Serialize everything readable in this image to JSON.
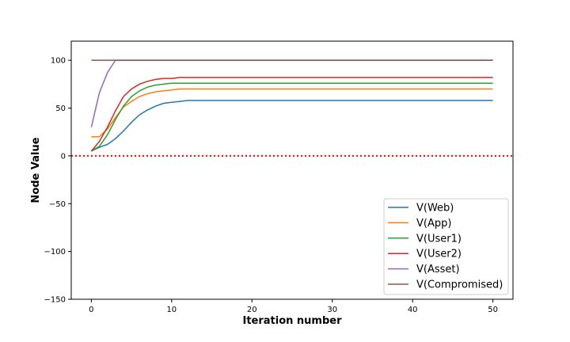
{
  "chart_data": {
    "type": "line",
    "title": "",
    "xlabel": "Iteration number",
    "ylabel": "Node Value",
    "xlim": [
      -2.5,
      52.5
    ],
    "ylim": [
      -150,
      120
    ],
    "xticks": [
      0,
      10,
      20,
      30,
      40,
      50
    ],
    "yticks": [
      -150,
      -100,
      -50,
      0,
      50,
      100
    ],
    "grid": false,
    "legend_position": "lower-right",
    "reference_line": {
      "y": 0,
      "color": "#ff0000",
      "style": "dotted"
    },
    "x": [
      0,
      1,
      2,
      3,
      4,
      5,
      6,
      7,
      8,
      9,
      10,
      11,
      12,
      13,
      14,
      15,
      16,
      17,
      18,
      19,
      20,
      21,
      22,
      23,
      24,
      25,
      26,
      27,
      28,
      29,
      30,
      31,
      32,
      33,
      34,
      35,
      36,
      37,
      38,
      39,
      40,
      41,
      42,
      43,
      44,
      45,
      46,
      47,
      48,
      49,
      50
    ],
    "series": [
      {
        "name": "V(Web)",
        "color": "#1f77b4",
        "values": [
          5,
          9,
          12,
          18,
          26,
          35,
          43,
          48,
          52,
          55,
          56,
          57,
          58,
          58,
          58,
          58,
          58,
          58,
          58,
          58,
          58,
          58,
          58,
          58,
          58,
          58,
          58,
          58,
          58,
          58,
          58,
          58,
          58,
          58,
          58,
          58,
          58,
          58,
          58,
          58,
          58,
          58,
          58,
          58,
          58,
          58,
          58,
          58,
          58,
          58,
          58
        ]
      },
      {
        "name": "V(App)",
        "color": "#ff7f0e",
        "values": [
          20,
          20,
          28,
          40,
          51,
          57,
          62,
          65,
          67,
          68,
          69,
          70,
          70,
          70,
          70,
          70,
          70,
          70,
          70,
          70,
          70,
          70,
          70,
          70,
          70,
          70,
          70,
          70,
          70,
          70,
          70,
          70,
          70,
          70,
          70,
          70,
          70,
          70,
          70,
          70,
          70,
          70,
          70,
          70,
          70,
          70,
          70,
          70,
          70,
          70,
          70
        ]
      },
      {
        "name": "V(User1)",
        "color": "#2ca02c",
        "values": [
          5,
          10,
          22,
          38,
          52,
          62,
          68,
          72,
          74,
          75,
          76,
          76,
          76,
          76,
          76,
          76,
          76,
          76,
          76,
          76,
          76,
          76,
          76,
          76,
          76,
          76,
          76,
          76,
          76,
          76,
          76,
          76,
          76,
          76,
          76,
          76,
          76,
          76,
          76,
          76,
          76,
          76,
          76,
          76,
          76,
          76,
          76,
          76,
          76,
          76,
          76
        ]
      },
      {
        "name": "V(User2)",
        "color": "#d62728",
        "values": [
          5,
          15,
          30,
          47,
          62,
          70,
          75,
          78,
          80,
          81,
          81,
          82,
          82,
          82,
          82,
          82,
          82,
          82,
          82,
          82,
          82,
          82,
          82,
          82,
          82,
          82,
          82,
          82,
          82,
          82,
          82,
          82,
          82,
          82,
          82,
          82,
          82,
          82,
          82,
          82,
          82,
          82,
          82,
          82,
          82,
          82,
          82,
          82,
          82,
          82,
          82
        ]
      },
      {
        "name": "V(Asset)",
        "color": "#9467bd",
        "values": [
          30,
          66,
          87,
          100,
          100,
          100,
          100,
          100,
          100,
          100,
          100,
          100,
          100,
          100,
          100,
          100,
          100,
          100,
          100,
          100,
          100,
          100,
          100,
          100,
          100,
          100,
          100,
          100,
          100,
          100,
          100,
          100,
          100,
          100,
          100,
          100,
          100,
          100,
          100,
          100,
          100,
          100,
          100,
          100,
          100,
          100,
          100,
          100,
          100,
          100,
          100
        ]
      },
      {
        "name": "V(Compromised)",
        "color": "#8c564b",
        "values": [
          100,
          100,
          100,
          100,
          100,
          100,
          100,
          100,
          100,
          100,
          100,
          100,
          100,
          100,
          100,
          100,
          100,
          100,
          100,
          100,
          100,
          100,
          100,
          100,
          100,
          100,
          100,
          100,
          100,
          100,
          100,
          100,
          100,
          100,
          100,
          100,
          100,
          100,
          100,
          100,
          100,
          100,
          100,
          100,
          100,
          100,
          100,
          100,
          100,
          100,
          100
        ]
      }
    ]
  }
}
